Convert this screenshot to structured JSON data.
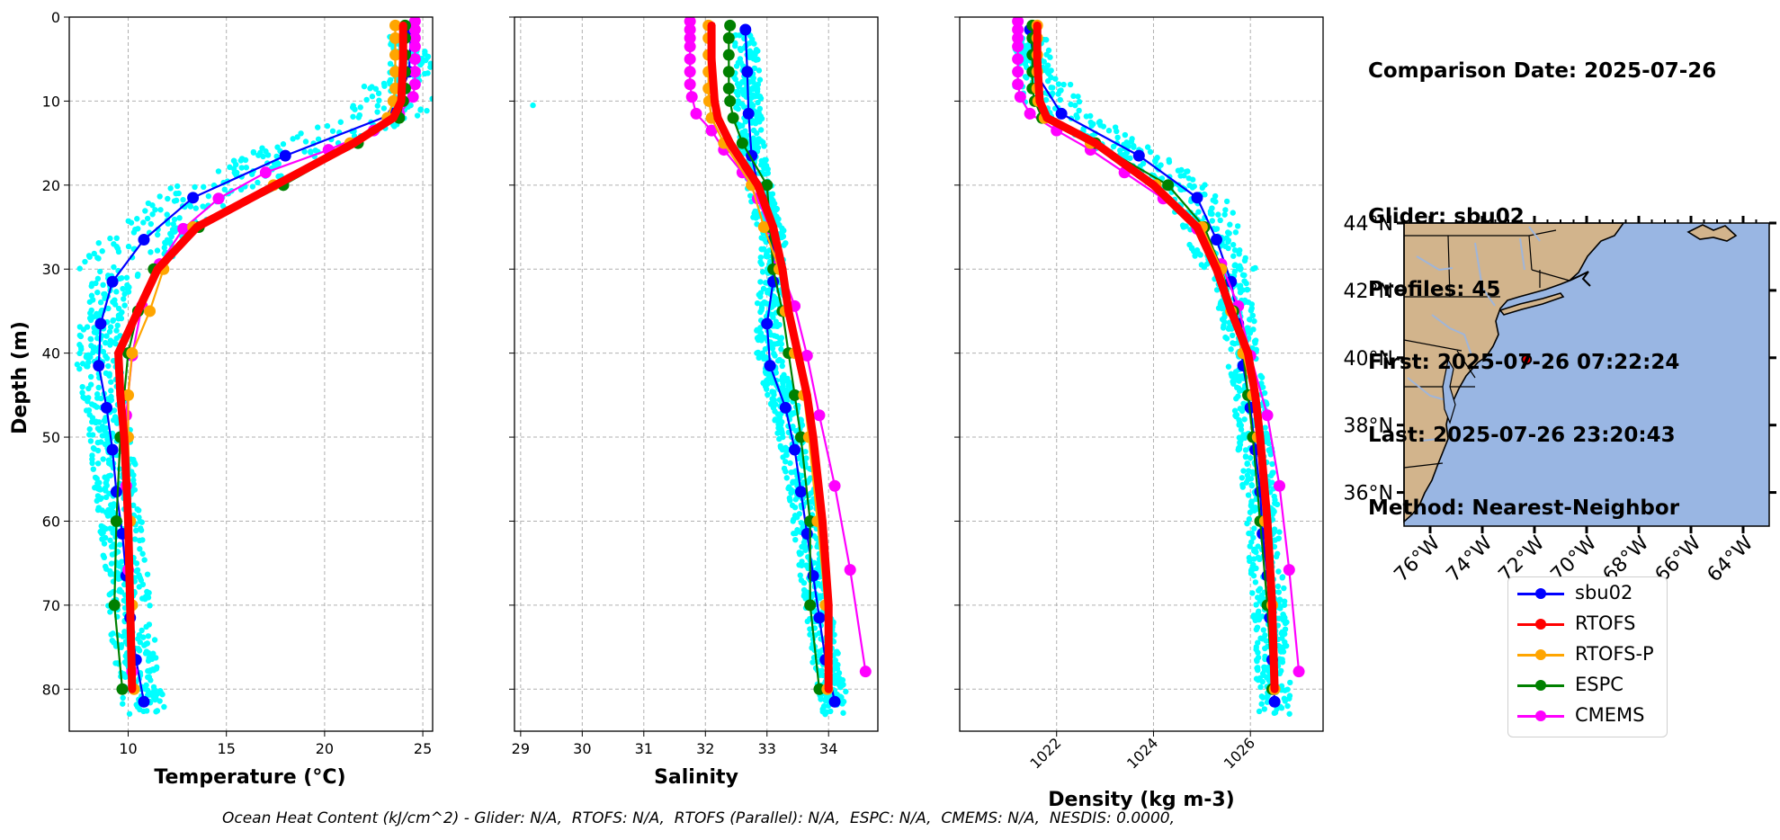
{
  "chart_data": [
    {
      "type": "line",
      "panel": "temperature",
      "xlabel": "Temperature (°C)",
      "ylabel": "Depth (m)",
      "xlim": [
        7,
        25.5
      ],
      "ylim": [
        85,
        0
      ],
      "x_ticks": [
        10,
        15,
        20,
        25
      ],
      "y_ticks": [
        0,
        10,
        20,
        30,
        40,
        50,
        60,
        70,
        80
      ],
      "grid": true,
      "depth": [
        1.5,
        6.5,
        11.5,
        16.5,
        21.5,
        26.5,
        31.5,
        36.5,
        41.5,
        46.5,
        51.5,
        56.5,
        61.5,
        66.5,
        71.5,
        76.5,
        81.5
      ],
      "series": [
        {
          "name": "sbu02",
          "color": "#0000ff",
          "values": [
            24.4,
            24.3,
            23.5,
            18.0,
            13.3,
            10.8,
            9.2,
            8.6,
            8.5,
            8.9,
            9.2,
            9.4,
            9.7,
            9.9,
            10.1,
            10.4,
            10.8
          ]
        },
        {
          "name": "RTOFS",
          "color": "#ff0000",
          "depth": [
            1,
            5,
            10,
            12,
            15,
            20,
            25,
            30,
            35,
            40,
            45,
            50,
            60,
            70,
            80
          ],
          "values": [
            24.0,
            24.0,
            23.9,
            23.5,
            21.5,
            17.5,
            13.5,
            11.5,
            10.5,
            9.5,
            9.6,
            9.8,
            10.0,
            10.1,
            10.2
          ]
        },
        {
          "name": "RTOFS-P",
          "color": "#ffa500",
          "depth": [
            1,
            2.5,
            4.5,
            6.5,
            8.5,
            10,
            12,
            15,
            20,
            25,
            30,
            35,
            40,
            45,
            50,
            60,
            70,
            80
          ],
          "values": [
            23.6,
            23.6,
            23.6,
            23.6,
            23.6,
            23.5,
            23.2,
            21.3,
            17.4,
            13.3,
            11.8,
            11.1,
            10.2,
            10.0,
            10.0,
            10.1,
            10.2,
            10.3
          ]
        },
        {
          "name": "ESPC",
          "color": "#008000",
          "depth": [
            1,
            2.5,
            4.5,
            6.5,
            8.5,
            10,
            12,
            15,
            20,
            25,
            30,
            35,
            40,
            45,
            50,
            60,
            70,
            80
          ],
          "values": [
            24.1,
            24.1,
            24.1,
            24.1,
            24.1,
            24.0,
            23.8,
            21.7,
            17.9,
            13.6,
            11.3,
            10.5,
            10.0,
            9.8,
            9.6,
            9.4,
            9.3,
            9.7
          ]
        },
        {
          "name": "CMEMS",
          "color": "#ff00ff",
          "depth": [
            0.5,
            1.5,
            2.5,
            3.5,
            5,
            6.5,
            8,
            9.5,
            11.5,
            13.5,
            15.8,
            18.5,
            21.6,
            25.2,
            29.4,
            34.4,
            40.3,
            47.4,
            55.8,
            65.8,
            77.9
          ],
          "values": [
            24.6,
            24.6,
            24.6,
            24.6,
            24.6,
            24.6,
            24.6,
            24.5,
            23.8,
            22.5,
            20.2,
            17.0,
            14.6,
            12.8,
            11.6,
            10.7,
            10.2,
            9.9,
            9.9,
            10.0,
            10.2
          ]
        }
      ],
      "scatter_cloud": {
        "name": "glider profiles",
        "color": "#00ffff"
      }
    },
    {
      "type": "line",
      "panel": "salinity",
      "xlabel": "Salinity",
      "xlim": [
        28.9,
        34.8
      ],
      "ylim": [
        85,
        0
      ],
      "x_ticks": [
        29,
        30,
        31,
        32,
        33,
        34
      ],
      "grid": true,
      "depth": [
        1.5,
        6.5,
        11.5,
        16.5,
        21.5,
        26.5,
        31.5,
        36.5,
        41.5,
        46.5,
        51.5,
        56.5,
        61.5,
        66.5,
        71.5,
        76.5,
        81.5
      ],
      "series": [
        {
          "name": "sbu02",
          "color": "#0000ff",
          "values": [
            32.65,
            32.68,
            32.7,
            32.75,
            32.9,
            33.1,
            33.1,
            33.0,
            33.05,
            33.3,
            33.45,
            33.55,
            33.65,
            33.75,
            33.85,
            33.95,
            34.1
          ]
        },
        {
          "name": "RTOFS",
          "color": "#ff0000",
          "depth": [
            1,
            5,
            10,
            12,
            15,
            20,
            25,
            30,
            35,
            40,
            45,
            50,
            60,
            70,
            80
          ],
          "values": [
            32.1,
            32.1,
            32.15,
            32.2,
            32.4,
            32.85,
            33.1,
            33.25,
            33.35,
            33.5,
            33.65,
            33.75,
            33.9,
            34.0,
            34.0
          ]
        },
        {
          "name": "RTOFS-P",
          "color": "#ffa500",
          "depth": [
            1,
            2.5,
            4.5,
            6.5,
            8.5,
            10,
            12,
            15,
            20,
            25,
            30,
            35,
            40,
            45,
            50,
            60,
            70,
            80
          ],
          "values": [
            32.05,
            32.05,
            32.05,
            32.05,
            32.05,
            32.06,
            32.1,
            32.3,
            32.75,
            32.95,
            33.2,
            33.3,
            33.45,
            33.6,
            33.68,
            33.82,
            33.95,
            33.98
          ]
        },
        {
          "name": "ESPC",
          "color": "#008000",
          "depth": [
            1,
            2.5,
            4.5,
            6.5,
            8.5,
            10,
            12,
            15,
            20,
            25,
            30,
            35,
            40,
            45,
            50,
            60,
            70,
            80
          ],
          "values": [
            32.4,
            32.38,
            32.38,
            32.38,
            32.38,
            32.4,
            32.45,
            32.6,
            33.0,
            33.05,
            33.1,
            33.25,
            33.35,
            33.45,
            33.55,
            33.7,
            33.7,
            33.85
          ]
        },
        {
          "name": "CMEMS",
          "color": "#ff00ff",
          "depth": [
            0.5,
            1.5,
            2.5,
            3.5,
            5,
            6.5,
            8,
            9.5,
            11.5,
            13.5,
            15.8,
            18.5,
            21.6,
            25.2,
            29.4,
            34.4,
            40.3,
            47.4,
            55.8,
            65.8,
            77.9
          ],
          "values": [
            31.75,
            31.75,
            31.75,
            31.75,
            31.75,
            31.75,
            31.75,
            31.78,
            31.85,
            32.1,
            32.3,
            32.6,
            32.85,
            33.05,
            33.2,
            33.45,
            33.65,
            33.85,
            34.1,
            34.35,
            34.6
          ]
        }
      ],
      "scatter_cloud": {
        "name": "glider profiles",
        "color": "#00ffff"
      }
    },
    {
      "type": "line",
      "panel": "density",
      "xlabel": "Density (kg m-3)",
      "xlim": [
        1020.0,
        1027.5
      ],
      "ylim": [
        85,
        0
      ],
      "x_ticks": [
        1022,
        1024,
        1026
      ],
      "grid": true,
      "depth": [
        1.5,
        6.5,
        11.5,
        16.5,
        21.5,
        26.5,
        31.5,
        36.5,
        41.5,
        46.5,
        51.5,
        56.5,
        61.5,
        66.5,
        71.5,
        76.5,
        81.5
      ],
      "series": [
        {
          "name": "sbu02",
          "color": "#0000ff",
          "values": [
            1021.45,
            1021.55,
            1022.1,
            1023.7,
            1024.9,
            1025.3,
            1025.6,
            1025.75,
            1025.85,
            1026.0,
            1026.1,
            1026.2,
            1026.25,
            1026.35,
            1026.4,
            1026.45,
            1026.5
          ]
        },
        {
          "name": "RTOFS",
          "color": "#ff0000",
          "depth": [
            1,
            5,
            10,
            12,
            15,
            20,
            25,
            30,
            35,
            40,
            45,
            50,
            60,
            70,
            80
          ],
          "values": [
            1021.6,
            1021.6,
            1021.65,
            1021.8,
            1022.8,
            1024.0,
            1024.9,
            1025.3,
            1025.6,
            1025.95,
            1026.1,
            1026.2,
            1026.35,
            1026.45,
            1026.5
          ]
        },
        {
          "name": "RTOFS-P",
          "color": "#ffa500",
          "depth": [
            1,
            2.5,
            4.5,
            6.5,
            8.5,
            10,
            12,
            15,
            20,
            25,
            30,
            35,
            40,
            45,
            50,
            60,
            70,
            80
          ],
          "values": [
            1021.6,
            1021.6,
            1021.6,
            1021.6,
            1021.6,
            1021.62,
            1021.75,
            1022.7,
            1024.05,
            1025.0,
            1025.4,
            1025.6,
            1025.85,
            1026.05,
            1026.15,
            1026.3,
            1026.45,
            1026.5
          ]
        },
        {
          "name": "ESPC",
          "color": "#008000",
          "depth": [
            1,
            2.5,
            4.5,
            6.5,
            8.5,
            10,
            12,
            15,
            20,
            25,
            30,
            35,
            40,
            45,
            50,
            60,
            70,
            80
          ],
          "values": [
            1021.5,
            1021.5,
            1021.5,
            1021.5,
            1021.5,
            1021.55,
            1021.7,
            1022.8,
            1024.3,
            1025.05,
            1025.4,
            1025.65,
            1025.85,
            1025.95,
            1026.05,
            1026.2,
            1026.35,
            1026.45
          ]
        },
        {
          "name": "CMEMS",
          "color": "#ff00ff",
          "depth": [
            0.5,
            1.5,
            2.5,
            3.5,
            5,
            6.5,
            8,
            9.5,
            11.5,
            13.5,
            15.8,
            18.5,
            21.6,
            25.2,
            29.4,
            34.4,
            40.3,
            47.4,
            55.8,
            65.8,
            77.9
          ],
          "values": [
            1021.2,
            1021.2,
            1021.2,
            1021.2,
            1021.2,
            1021.2,
            1021.2,
            1021.25,
            1021.45,
            1022.0,
            1022.7,
            1023.4,
            1024.2,
            1024.9,
            1025.4,
            1025.75,
            1026.0,
            1026.35,
            1026.6,
            1026.8,
            1027.0
          ]
        }
      ],
      "scatter_cloud": {
        "name": "glider profiles",
        "color": "#00ffff"
      }
    },
    {
      "type": "map",
      "lat_ticks": [
        "44°N",
        "42°N",
        "40°N",
        "38°N",
        "36°N"
      ],
      "lon_ticks": [
        "76°W",
        "74°W",
        "72°W",
        "70°W",
        "68°W",
        "66°W",
        "64°W"
      ],
      "extent_lon": [
        -77,
        -63
      ],
      "extent_lat": [
        35,
        44
      ],
      "glider_position": {
        "lon": -72.3,
        "lat": 39.95
      },
      "colors": {
        "land": "#d2b48c",
        "ocean": "#99b6e3",
        "rivers": "#9fb5d9"
      }
    }
  ],
  "info": {
    "date_line": "Comparison Date: 2025-07-26",
    "glider_line": "Glider: sbu02",
    "profiles_line": "Profiles: 45",
    "first_line": "First: 2025-07-26 07:22:24",
    "last_line": "Last: 2025-07-26 23:20:43",
    "method_line": "Method: Nearest-Neighbor"
  },
  "legend": [
    {
      "label": "sbu02",
      "color": "#0000ff"
    },
    {
      "label": "RTOFS",
      "color": "#ff0000"
    },
    {
      "label": "RTOFS-P",
      "color": "#ffa500"
    },
    {
      "label": "ESPC",
      "color": "#008000"
    },
    {
      "label": "CMEMS",
      "color": "#ff00ff"
    }
  ],
  "footer": {
    "ohc_text": "Ocean Heat Content (kJ/cm^2) - Glider: N/A,  RTOFS: N/A,  RTOFS (Parallel): N/A,  ESPC: N/A,  CMEMS: N/A,  NESDIS: 0.0000,"
  }
}
